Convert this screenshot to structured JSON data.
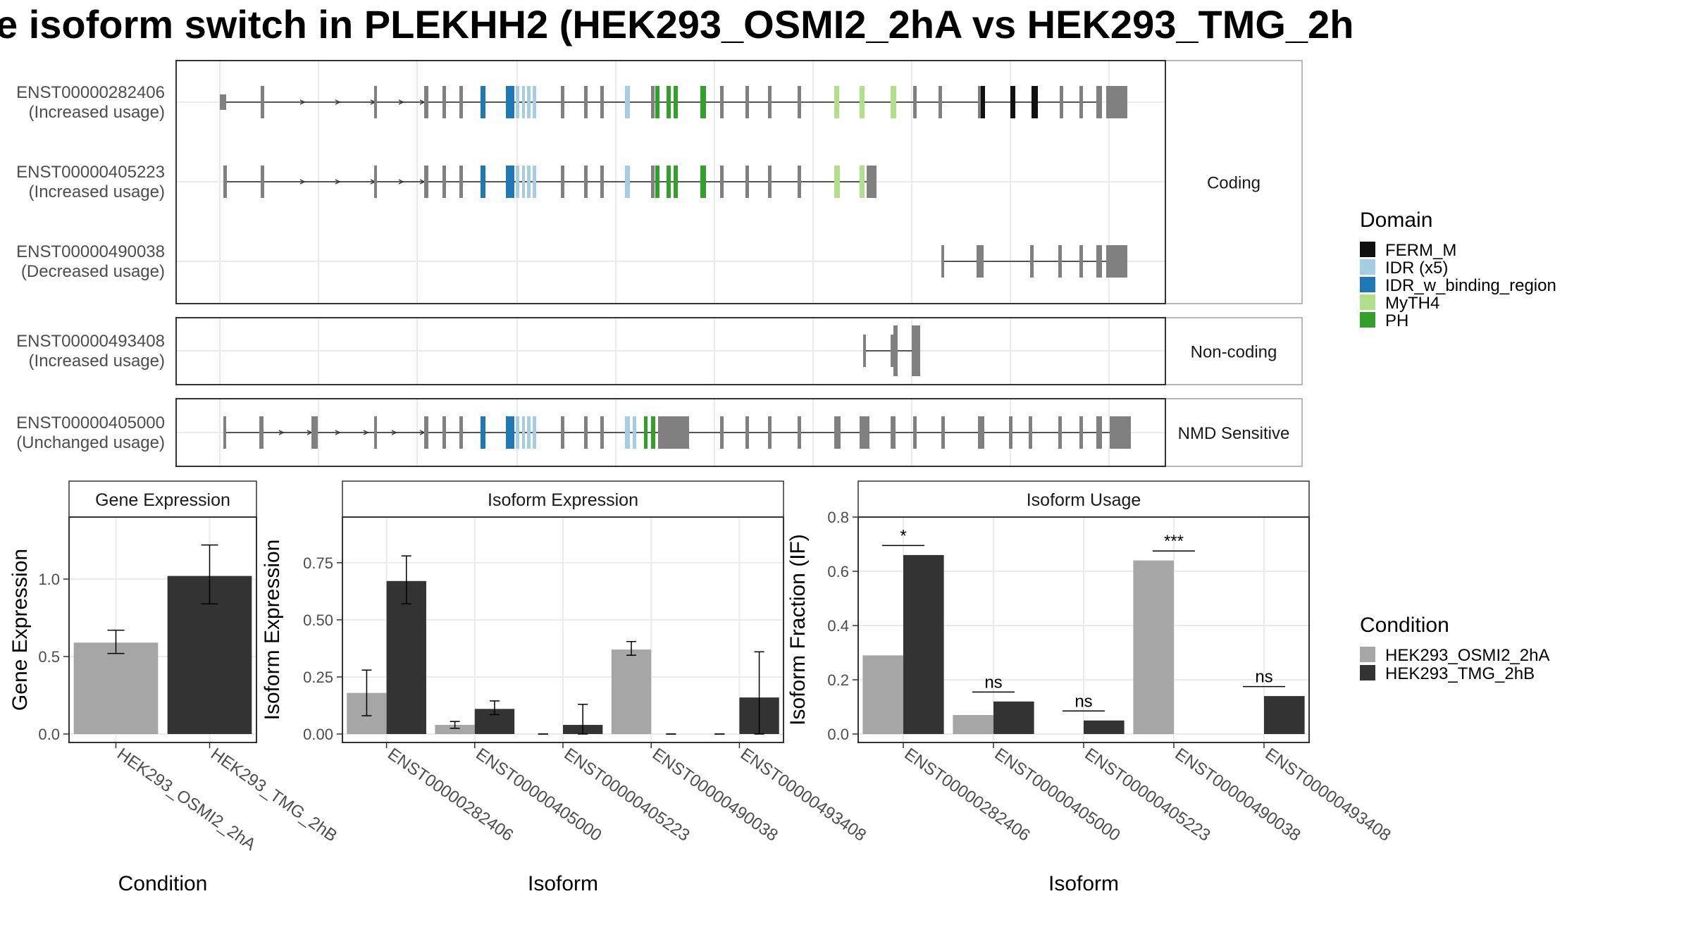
{
  "title": "e isoform switch in PLEKHH2 (HEK293_OSMI2_2hA vs HEK293_TMG_2h",
  "colors": {
    "structure": "#808080",
    "FERM_M": "#111111",
    "IDR (x5)": "#a6cee3",
    "IDR_w_binding_region": "#1f78b4",
    "MyTH4": "#b2df8a",
    "PH": "#33a02c",
    "HEK293_OSMI2_2hA": "#a6a6a6",
    "HEK293_TMG_2hB": "#333333"
  },
  "transcript_panel": {
    "facets": [
      "Coding",
      "Non-coding",
      "NMD Sensitive"
    ],
    "domain_legend": {
      "title": "Domain",
      "items": [
        "FERM_M",
        "IDR (x5)",
        "IDR_w_binding_region",
        "MyTH4",
        "PH"
      ]
    },
    "isoforms": [
      {
        "id": "ENST00000282406",
        "usage": "(Increased usage)",
        "facet": "Coding"
      },
      {
        "id": "ENST00000405223",
        "usage": "(Increased usage)",
        "facet": "Coding"
      },
      {
        "id": "ENST00000490038",
        "usage": "(Decreased usage)",
        "facet": "Coding"
      },
      {
        "id": "ENST00000493408",
        "usage": "(Increased usage)",
        "facet": "Non-coding"
      },
      {
        "id": "ENST00000405000",
        "usage": "(Unchanged usage)",
        "facet": "NMD Sensitive"
      }
    ]
  },
  "condition_legend": {
    "title": "Condition",
    "items": [
      "HEK293_OSMI2_2hA",
      "HEK293_TMG_2hB"
    ]
  },
  "chart_data": [
    {
      "type": "bar",
      "title": "Gene Expression",
      "xlabel": "Condition",
      "ylabel": "Gene Expression",
      "ylim": [
        0,
        1.4
      ],
      "yticks": [
        0.0,
        0.5,
        1.0
      ],
      "ytick_labels": [
        "0.0",
        "0.5",
        "1.0"
      ],
      "categories": [
        "HEK293_OSMI2_2hA",
        "HEK293_TMG_2hB"
      ],
      "values": [
        0.59,
        1.02
      ],
      "errors": [
        [
          0.52,
          0.67
        ],
        [
          0.84,
          1.22
        ]
      ]
    },
    {
      "type": "bar",
      "title": "Isoform Expression",
      "xlabel": "Isoform",
      "ylabel": "Isoform Expression",
      "ylim": [
        0,
        0.95
      ],
      "yticks": [
        0.0,
        0.25,
        0.5,
        0.75
      ],
      "ytick_labels": [
        "0.00",
        "0.25",
        "0.50",
        "0.75"
      ],
      "categories": [
        "ENST00000282406",
        "ENST00000405000",
        "ENST00000405223",
        "ENST00000490038",
        "ENST00000493408"
      ],
      "series": [
        {
          "name": "HEK293_OSMI2_2hA",
          "values": [
            0.18,
            0.04,
            0.0,
            0.37,
            0.0
          ],
          "errors": [
            [
              0.08,
              0.28
            ],
            [
              0.025,
              0.055
            ],
            [
              0.0,
              0.0
            ],
            [
              0.345,
              0.405
            ],
            [
              0.0,
              0.0
            ]
          ]
        },
        {
          "name": "HEK293_TMG_2hB",
          "values": [
            0.67,
            0.11,
            0.04,
            0.0,
            0.16
          ],
          "errors": [
            [
              0.57,
              0.78
            ],
            [
              0.085,
              0.145
            ],
            [
              0.0,
              0.13
            ],
            [
              0.0,
              0.0
            ],
            [
              0.0,
              0.36
            ]
          ]
        }
      ]
    },
    {
      "type": "bar",
      "title": "Isoform Usage",
      "xlabel": "Isoform",
      "ylabel": "Isoform Fraction (IF)",
      "ylim": [
        0,
        0.8
      ],
      "yticks": [
        0.0,
        0.2,
        0.4,
        0.6,
        0.8
      ],
      "ytick_labels": [
        "0.0",
        "0.2",
        "0.4",
        "0.6",
        "0.8"
      ],
      "categories": [
        "ENST00000282406",
        "ENST00000405000",
        "ENST00000405223",
        "ENST00000490038",
        "ENST00000493408"
      ],
      "series": [
        {
          "name": "HEK293_OSMI2_2hA",
          "values": [
            0.29,
            0.07,
            0.0,
            0.64,
            0.0
          ]
        },
        {
          "name": "HEK293_TMG_2hB",
          "values": [
            0.66,
            0.12,
            0.05,
            0.0,
            0.14
          ]
        }
      ],
      "significance": [
        "*",
        "ns",
        "ns",
        "***",
        "ns"
      ],
      "significance_y": [
        0.695,
        0.155,
        0.085,
        0.675,
        0.175
      ]
    }
  ]
}
